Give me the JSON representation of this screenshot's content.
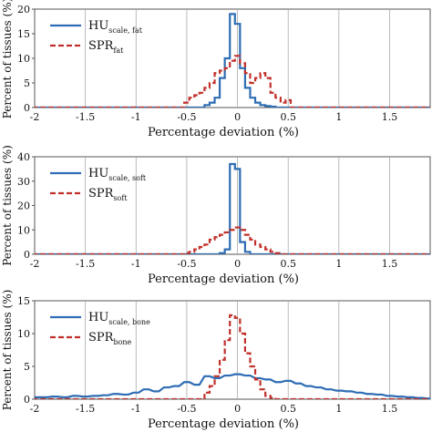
{
  "chart_data": [
    {
      "type": "line",
      "xlabel": "Percentage deviation (%)",
      "ylabel": "Percent of tissues (%)",
      "xlim": [
        -2,
        1.9
      ],
      "ylim": [
        0,
        20
      ],
      "xticks": [
        "-2",
        "-1.5",
        "-1",
        "-0.5",
        "0",
        "0.5",
        "1",
        "1.5"
      ],
      "yticks": [
        "0",
        "5",
        "10",
        "15",
        "20"
      ],
      "grid": "vertical",
      "legend": "top-left",
      "series": [
        {
          "label_main": "HU",
          "label_sub": "scale, fat",
          "color": "#2e6db4",
          "style": "solid",
          "x": [
            -2,
            -0.35,
            -0.3,
            -0.25,
            -0.2,
            -0.15,
            -0.1,
            -0.05,
            0,
            0.05,
            0.1,
            0.15,
            0.2,
            0.25,
            0.3,
            0.35,
            0.4,
            1.9
          ],
          "y": [
            0,
            0,
            0.5,
            1,
            2,
            6,
            10,
            19,
            17,
            8,
            4,
            2,
            1,
            0.5,
            0.3,
            0.2,
            0,
            0
          ]
        },
        {
          "label_main": "SPR",
          "label_sub": "fat",
          "color": "#c0302b",
          "style": "dashed",
          "x": [
            -2,
            -0.55,
            -0.5,
            -0.45,
            -0.4,
            -0.35,
            -0.3,
            -0.25,
            -0.2,
            -0.15,
            -0.1,
            -0.05,
            0,
            0.05,
            0.1,
            0.15,
            0.2,
            0.25,
            0.3,
            0.35,
            0.4,
            0.45,
            0.5,
            0.55,
            1.9
          ],
          "y": [
            0,
            0,
            1,
            2,
            2.5,
            3,
            4,
            5,
            7,
            7.5,
            8,
            9.5,
            10.5,
            9,
            7,
            5,
            6,
            7,
            6,
            3,
            2,
            1,
            1.5,
            0,
            0
          ]
        }
      ]
    },
    {
      "type": "line",
      "xlabel": "Percentage deviation (%)",
      "ylabel": "Percent of tissues (%)",
      "xlim": [
        -2,
        1.9
      ],
      "ylim": [
        0,
        40
      ],
      "xticks": [
        "-2",
        "-1.5",
        "-1",
        "-0.5",
        "0",
        "0.5",
        "1",
        "1.5"
      ],
      "yticks": [
        "0",
        "10",
        "20",
        "30",
        "40"
      ],
      "grid": "vertical",
      "legend": "top-left",
      "series": [
        {
          "label_main": "HU",
          "label_sub": "scale, soft",
          "color": "#2e6db4",
          "style": "solid",
          "x": [
            -2,
            -0.2,
            -0.15,
            -0.1,
            -0.05,
            0,
            0.05,
            0.1,
            0.15,
            1.9
          ],
          "y": [
            0,
            0,
            0.5,
            2,
            37,
            35,
            5,
            1,
            0,
            0
          ]
        },
        {
          "label_main": "SPR",
          "label_sub": "soft",
          "color": "#c0302b",
          "style": "dashed",
          "x": [
            -2,
            -0.55,
            -0.5,
            -0.45,
            -0.4,
            -0.35,
            -0.3,
            -0.25,
            -0.2,
            -0.15,
            -0.1,
            -0.05,
            0,
            0.05,
            0.1,
            0.15,
            0.2,
            0.25,
            0.3,
            0.35,
            0.4,
            0.45,
            1.9
          ],
          "y": [
            0,
            0,
            0.5,
            1,
            2,
            3,
            4,
            6,
            7,
            8,
            9,
            10,
            11,
            10,
            8,
            6,
            4,
            3,
            2,
            1,
            0.5,
            0,
            0
          ]
        }
      ]
    },
    {
      "type": "line",
      "xlabel": "Percentage deviation (%)",
      "ylabel": "Percent of tissues (%)",
      "xlim": [
        -2,
        1.9
      ],
      "ylim": [
        0,
        15
      ],
      "xticks": [
        "-2",
        "-1.5",
        "-1",
        "-0.5",
        "0",
        "0.5",
        "1",
        "1.5"
      ],
      "yticks": [
        "0",
        "5",
        "10",
        "15"
      ],
      "grid": "vertical",
      "legend": "top-left",
      "series": [
        {
          "label_main": "HU",
          "label_sub": "scale, bone",
          "color": "#2e6db4",
          "style": "solid",
          "x": [
            -2,
            -1.9,
            -1.8,
            -1.7,
            -1.6,
            -1.5,
            -1.4,
            -1.3,
            -1.2,
            -1.1,
            -1.0,
            -0.9,
            -0.8,
            -0.7,
            -0.6,
            -0.5,
            -0.4,
            -0.3,
            -0.2,
            -0.1,
            0,
            0.1,
            0.2,
            0.3,
            0.4,
            0.5,
            0.6,
            0.7,
            0.8,
            0.9,
            1.0,
            1.1,
            1.2,
            1.3,
            1.4,
            1.5,
            1.6,
            1.7,
            1.8,
            1.9
          ],
          "y": [
            0.3,
            0.3,
            0.4,
            0.3,
            0.5,
            0.4,
            0.5,
            0.6,
            0.8,
            0.7,
            1.0,
            1.5,
            1.2,
            1.8,
            2.0,
            2.6,
            2.2,
            3.5,
            3.2,
            3.6,
            3.8,
            3.6,
            3.2,
            3.0,
            2.6,
            2.8,
            2.4,
            2.0,
            1.8,
            1.5,
            1.3,
            1.2,
            1.0,
            0.8,
            0.7,
            0.5,
            0.4,
            0.3,
            0.2,
            0.1
          ]
        },
        {
          "label_main": "SPR",
          "label_sub": "bone",
          "color": "#c0302b",
          "style": "dashed",
          "x": [
            -2,
            -0.35,
            -0.3,
            -0.25,
            -0.2,
            -0.15,
            -0.1,
            -0.05,
            0,
            0.05,
            0.1,
            0.15,
            0.2,
            0.25,
            0.3,
            0.35,
            0.4,
            1.9
          ],
          "y": [
            0,
            0,
            1,
            2,
            3.5,
            6,
            9,
            12.8,
            12.4,
            10,
            7,
            5,
            3,
            1.5,
            0.5,
            0.2,
            0,
            0
          ]
        }
      ]
    }
  ]
}
